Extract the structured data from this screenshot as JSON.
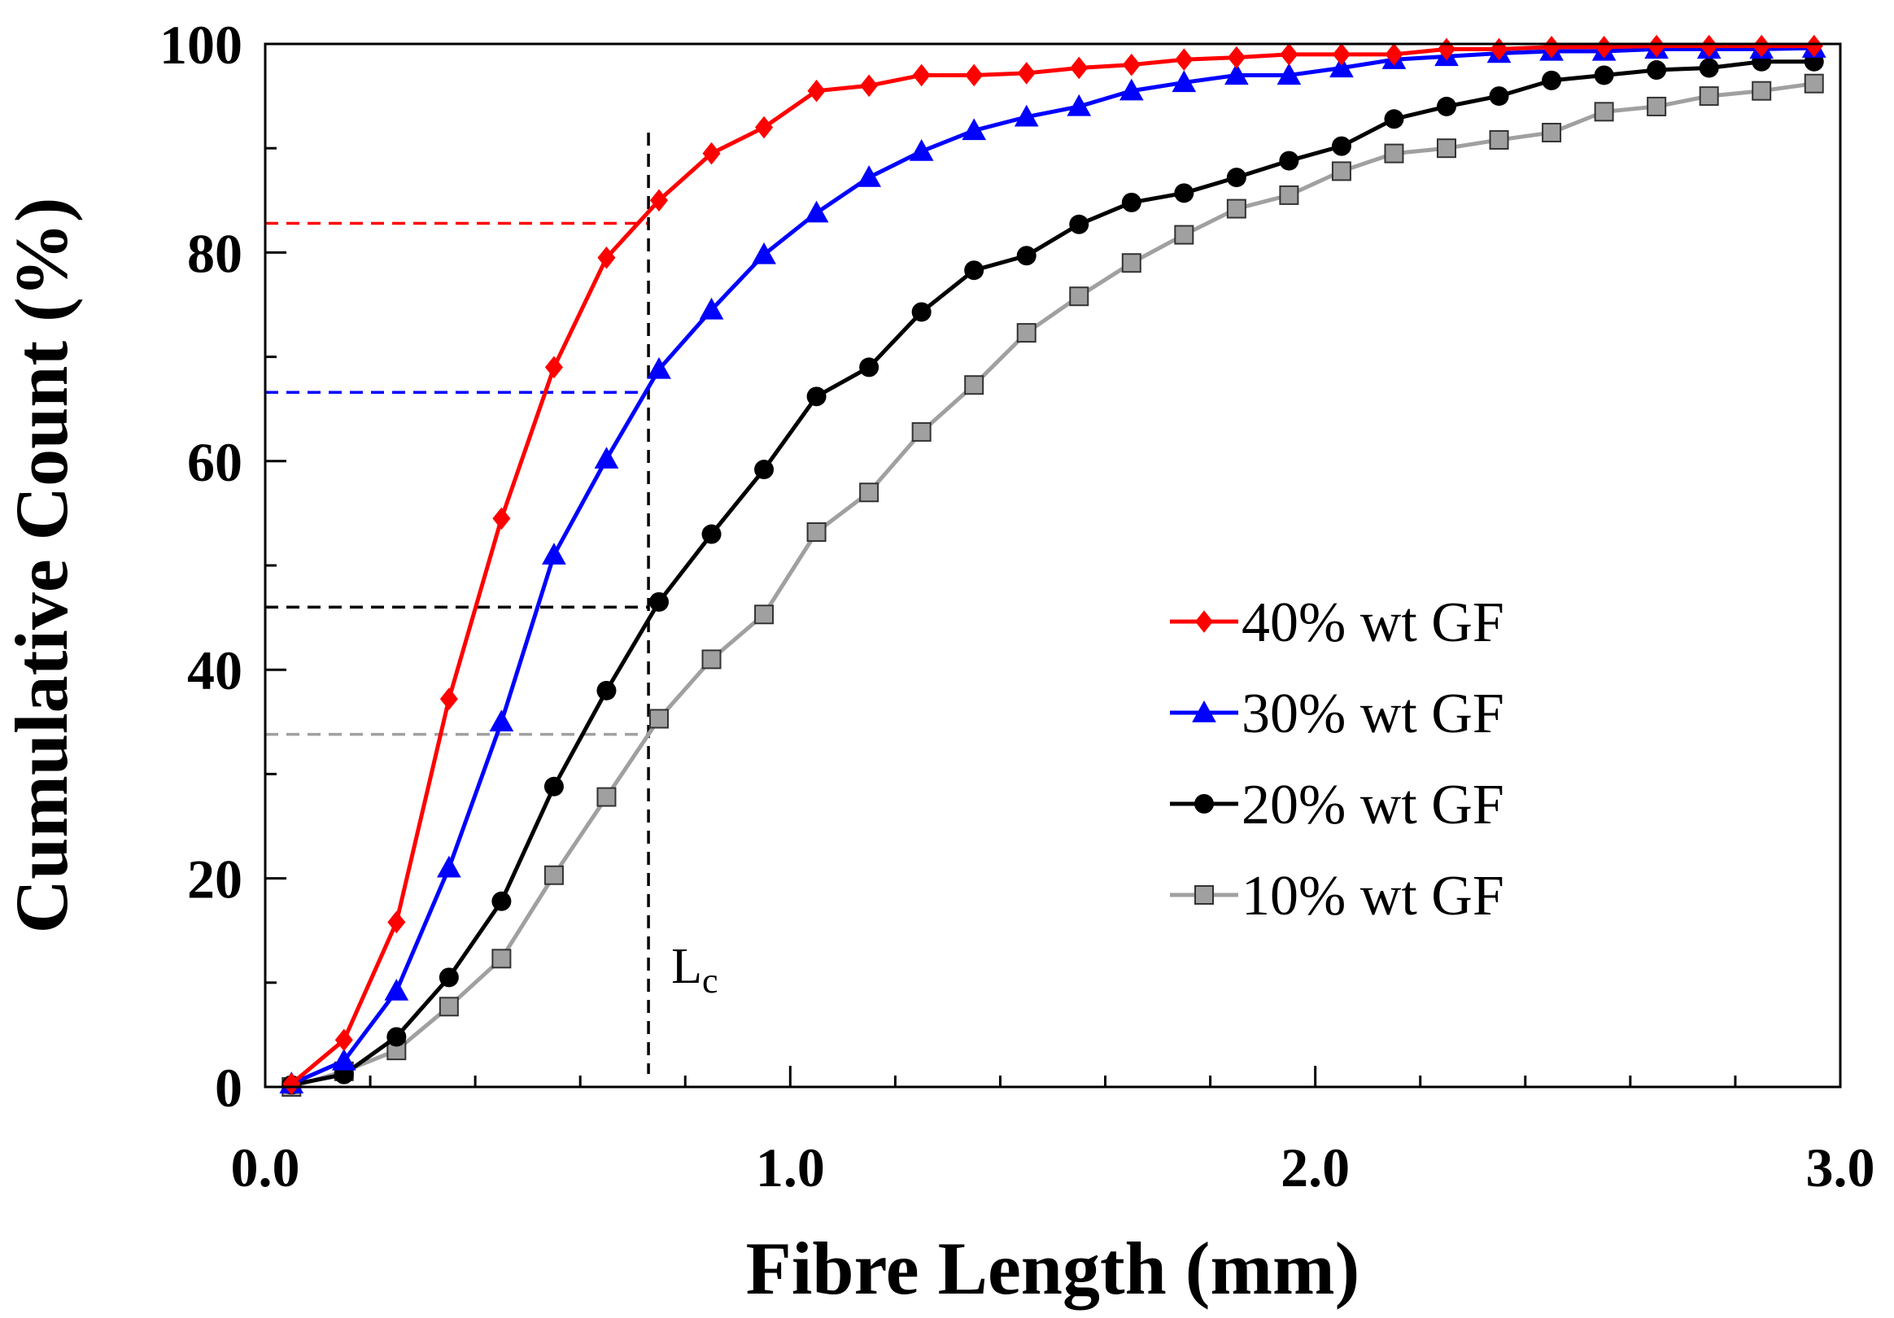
{
  "chart_data": {
    "type": "line",
    "title": "",
    "xlabel": "Fibre Length (mm)",
    "ylabel": "Cumulative Count (%)",
    "xlim": [
      0.0,
      3.0
    ],
    "ylim": [
      0,
      100
    ],
    "x_ticks": [
      0.0,
      1.0,
      2.0,
      3.0
    ],
    "x_tick_labels": [
      "0.0",
      "1.0",
      "2.0",
      "3.0"
    ],
    "x_minor_step": 0.2,
    "y_ticks": [
      0,
      20,
      40,
      60,
      80,
      100
    ],
    "y_tick_labels": [
      "0",
      "20",
      "40",
      "60",
      "80",
      "100"
    ],
    "y_minor_step": 10,
    "grid": false,
    "legend_position": "center-right",
    "x": [
      0.05,
      0.15,
      0.25,
      0.35,
      0.45,
      0.55,
      0.65,
      0.75,
      0.85,
      0.95,
      1.05,
      1.15,
      1.25,
      1.35,
      1.45,
      1.55,
      1.65,
      1.75,
      1.85,
      1.95,
      2.05,
      2.15,
      2.25,
      2.35,
      2.45,
      2.55,
      2.65,
      2.75,
      2.85,
      2.95
    ],
    "series": [
      {
        "name": "40% wt GF",
        "color": "#ff0000",
        "marker": "diamond",
        "values": [
          0.3,
          4.5,
          15.8,
          37.2,
          54.5,
          69.0,
          79.5,
          85.0,
          89.5,
          92.0,
          95.5,
          96.0,
          97.0,
          97.0,
          97.2,
          97.7,
          98.0,
          98.5,
          98.7,
          99.0,
          99.0,
          99.0,
          99.5,
          99.5,
          99.7,
          99.7,
          99.8,
          99.8,
          99.8,
          99.8
        ]
      },
      {
        "name": "30% wt GF",
        "color": "#0000ff",
        "marker": "triangle",
        "values": [
          0.3,
          2.5,
          9.2,
          21.0,
          35.0,
          51.0,
          60.2,
          68.8,
          74.5,
          79.8,
          83.8,
          87.2,
          89.7,
          91.7,
          93.0,
          94.0,
          95.5,
          96.3,
          97.0,
          97.0,
          97.7,
          98.5,
          98.8,
          99.1,
          99.3,
          99.3,
          99.5,
          99.5,
          99.5,
          99.6
        ]
      },
      {
        "name": "20% wt GF",
        "color": "#000000",
        "marker": "circle",
        "values": [
          0.2,
          1.2,
          4.8,
          10.5,
          17.8,
          28.8,
          38.0,
          46.5,
          53.0,
          59.2,
          66.2,
          69.0,
          74.3,
          78.3,
          79.7,
          82.7,
          84.8,
          85.7,
          87.2,
          88.8,
          90.2,
          92.8,
          94.0,
          95.0,
          96.5,
          97.0,
          97.5,
          97.7,
          98.3,
          98.3
        ]
      },
      {
        "name": "10% wt GF",
        "color": "#a0a0a0",
        "marker": "square",
        "values": [
          0.0,
          1.5,
          3.5,
          7.7,
          12.3,
          20.3,
          27.8,
          35.3,
          41.0,
          45.3,
          53.2,
          57.0,
          62.8,
          67.3,
          72.3,
          75.8,
          79.0,
          81.7,
          84.2,
          85.5,
          87.8,
          89.5,
          90.0,
          90.8,
          91.5,
          93.5,
          94.0,
          95.0,
          95.5,
          96.2
        ]
      }
    ],
    "annotations": {
      "critical_length": {
        "x": 0.73,
        "label_main": "L",
        "label_sub": "c"
      },
      "intercepts": [
        {
          "series": "40% wt GF",
          "y": 82.8,
          "color": "#ff0000"
        },
        {
          "series": "30% wt GF",
          "y": 66.6,
          "color": "#0000ff"
        },
        {
          "series": "20% wt GF",
          "y": 46.0,
          "color": "#000000"
        },
        {
          "series": "10% wt GF",
          "y": 33.8,
          "color": "#a0a0a0"
        }
      ]
    }
  }
}
